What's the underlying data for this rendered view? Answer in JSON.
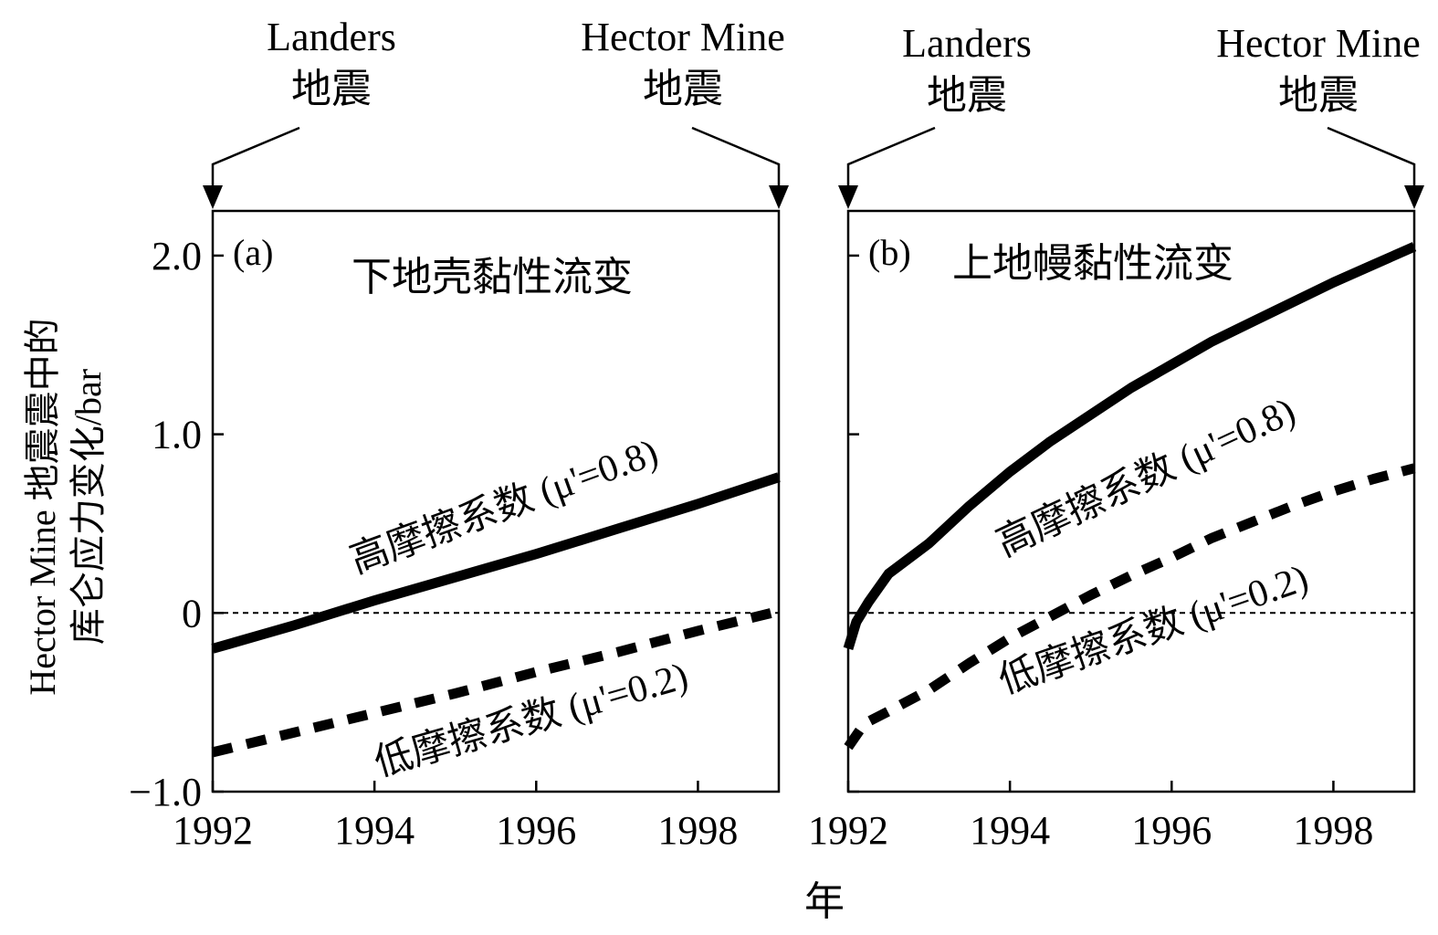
{
  "chart_data": [
    {
      "type": "line",
      "panel_label": "(a)",
      "title": "下地壳黏性流变",
      "xlabel": "年",
      "ylabel": [
        "Hector Mine 地震震中的",
        "库仑应力变化/bar"
      ],
      "xlim": [
        1992,
        1999
      ],
      "ylim": [
        -1.0,
        2.25
      ],
      "xticks": [
        1992,
        1994,
        1996,
        1998
      ],
      "xtick_labels": [
        "1992",
        "1994",
        "1996",
        "1998"
      ],
      "yticks": [
        -1.0,
        0,
        1.0,
        2.0
      ],
      "ytick_labels": [
        "−1.0",
        "0",
        "1.0",
        "2.0"
      ],
      "zero_line": true,
      "events": [
        {
          "x": 1992.0,
          "lines": [
            "Landers",
            "地震"
          ]
        },
        {
          "x": 1999.0,
          "lines": [
            "Hector Mine",
            "地震"
          ]
        }
      ],
      "series": [
        {
          "label": "高摩擦系数 (μ'=0.8)",
          "style": "solid",
          "color": "#000000",
          "x": [
            1992.0,
            1993.0,
            1994.0,
            1995.0,
            1996.0,
            1997.0,
            1998.0,
            1999.0
          ],
          "y": [
            -0.2,
            -0.07,
            0.07,
            0.2,
            0.33,
            0.47,
            0.61,
            0.76
          ]
        },
        {
          "label": "低摩擦系数 (μ'=0.2)",
          "style": "dashed",
          "color": "#000000",
          "x": [
            1992.0,
            1993.0,
            1994.0,
            1995.0,
            1996.0,
            1997.0,
            1998.0,
            1999.0
          ],
          "y": [
            -0.78,
            -0.67,
            -0.56,
            -0.45,
            -0.33,
            -0.22,
            -0.1,
            0.01
          ]
        }
      ]
    },
    {
      "type": "line",
      "panel_label": "(b)",
      "title": "上地幔黏性流变",
      "xlabel": "年",
      "xlim": [
        1992,
        1999
      ],
      "ylim": [
        -1.0,
        2.25
      ],
      "xticks": [
        1992,
        1994,
        1996,
        1998
      ],
      "xtick_labels": [
        "1992",
        "1994",
        "1996",
        "1998"
      ],
      "yticks": [
        -1.0,
        0,
        1.0,
        2.0
      ],
      "zero_line": true,
      "events": [
        {
          "x": 1992.0,
          "lines": [
            "Landers",
            "地震"
          ]
        },
        {
          "x": 1999.0,
          "lines": [
            "Hector Mine",
            "地震"
          ]
        }
      ],
      "series": [
        {
          "label": "高摩擦系数 (μ'=0.8)",
          "style": "solid",
          "color": "#000000",
          "x": [
            1992.0,
            1992.1,
            1992.25,
            1992.5,
            1993.0,
            1993.5,
            1994.0,
            1994.5,
            1995.0,
            1995.5,
            1996.0,
            1996.5,
            1997.0,
            1997.5,
            1998.0,
            1998.5,
            1999.0
          ],
          "y": [
            -0.2,
            -0.05,
            0.06,
            0.22,
            0.39,
            0.6,
            0.79,
            0.96,
            1.11,
            1.26,
            1.39,
            1.52,
            1.63,
            1.74,
            1.85,
            1.95,
            2.05
          ]
        },
        {
          "label": "低摩擦系数 (μ'=0.2)",
          "style": "dashed",
          "color": "#000000",
          "x": [
            1992.0,
            1992.2,
            1992.5,
            1993.0,
            1993.5,
            1994.0,
            1994.5,
            1995.0,
            1995.5,
            1996.0,
            1996.5,
            1997.0,
            1997.5,
            1998.0,
            1998.5,
            1999.0
          ],
          "y": [
            -0.75,
            -0.62,
            -0.55,
            -0.43,
            -0.28,
            -0.14,
            -0.02,
            0.1,
            0.21,
            0.31,
            0.42,
            0.51,
            0.6,
            0.68,
            0.75,
            0.81
          ]
        }
      ]
    }
  ]
}
